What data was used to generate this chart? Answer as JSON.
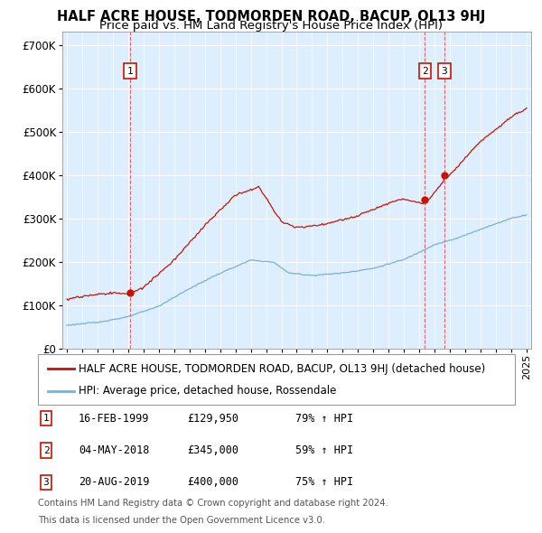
{
  "title": "HALF ACRE HOUSE, TODMORDEN ROAD, BACUP, OL13 9HJ",
  "subtitle": "Price paid vs. HM Land Registry's House Price Index (HPI)",
  "ylim": [
    0,
    730000
  ],
  "yticks": [
    0,
    100000,
    200000,
    300000,
    400000,
    500000,
    600000,
    700000
  ],
  "ytick_labels": [
    "£0",
    "£100K",
    "£200K",
    "£300K",
    "£400K",
    "£500K",
    "£600K",
    "£700K"
  ],
  "hpi_color": "#7ab0d4",
  "price_color": "#cc1100",
  "dashed_line_color": "#dd4444",
  "plot_bg_color": "#ddeeff",
  "background_color": "#ffffff",
  "grid_color": "#ffffff",
  "legend_items": [
    "HALF ACRE HOUSE, TODMORDEN ROAD, BACUP, OL13 9HJ (detached house)",
    "HPI: Average price, detached house, Rossendale"
  ],
  "transactions": [
    {
      "label": "1",
      "date": "16-FEB-1999",
      "price": "129,950",
      "price_val": 129950,
      "pct": "79%",
      "x": 1999.12
    },
    {
      "label": "2",
      "date": "04-MAY-2018",
      "price": "345,000",
      "price_val": 345000,
      "pct": "59%",
      "x": 2018.37
    },
    {
      "label": "3",
      "date": "20-AUG-2019",
      "price": "400,000",
      "price_val": 400000,
      "pct": "75%",
      "x": 2019.63
    }
  ],
  "footnote1": "Contains HM Land Registry data © Crown copyright and database right 2024.",
  "footnote2": "This data is licensed under the Open Government Licence v3.0.",
  "title_fontsize": 10.5,
  "subtitle_fontsize": 9.5,
  "tick_fontsize": 8.5,
  "legend_fontsize": 8.5
}
